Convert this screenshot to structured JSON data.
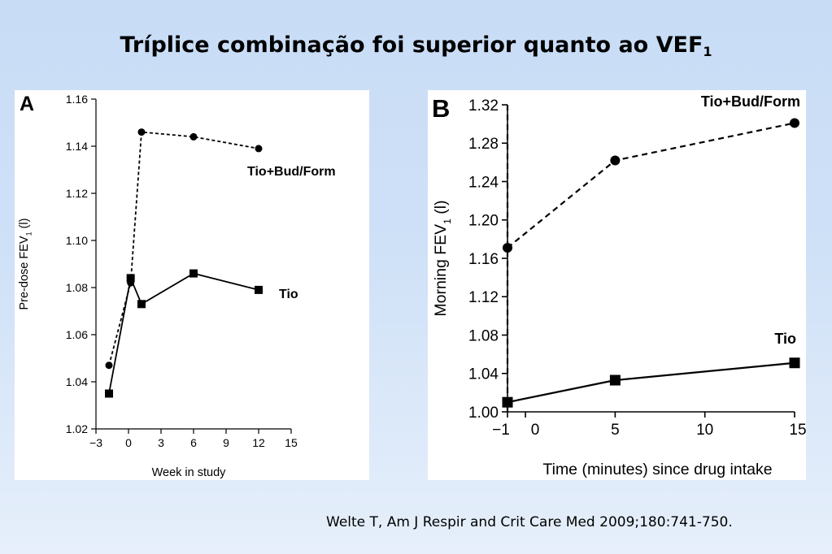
{
  "slide": {
    "title": "Tríplice combinação foi superior quanto ao VEF",
    "title_sub": "1",
    "citation": "Welte T, Am J Respir and Crit Care Med 2009;180:741-750."
  },
  "chart_data": [
    {
      "type": "line",
      "panel_label": "A",
      "xlabel": "Week in study",
      "ylabel": "Pre-dose FEV",
      "ylabel_sub": "1",
      "ylabel_unit": " (l)",
      "xlim": [
        -3,
        15
      ],
      "ylim": [
        1.02,
        1.16
      ],
      "xticks": [
        -3,
        0,
        3,
        6,
        9,
        12,
        15
      ],
      "xtick_labels": [
        "−3",
        "0",
        "3",
        "6",
        "9",
        "12",
        "15"
      ],
      "yticks": [
        1.02,
        1.04,
        1.06,
        1.08,
        1.1,
        1.12,
        1.14,
        1.16
      ],
      "ytick_labels": [
        "1.02",
        "1.04",
        "1.06",
        "1.08",
        "1.10",
        "1.12",
        "1.14",
        "1.16"
      ],
      "series": [
        {
          "name": "Tio+Bud/Form",
          "style": "dashed",
          "marker": "circle",
          "x": [
            -1.8,
            0.2,
            1.2,
            6.0,
            12.0
          ],
          "y": [
            1.047,
            1.082,
            1.146,
            1.144,
            1.139
          ]
        },
        {
          "name": "Tio",
          "style": "solid",
          "marker": "square",
          "x": [
            -1.8,
            0.2,
            1.2,
            6.0,
            12.0
          ],
          "y": [
            1.035,
            1.084,
            1.073,
            1.086,
            1.079
          ]
        }
      ]
    },
    {
      "type": "line",
      "panel_label": "B",
      "xlabel": "Time (minutes) since drug intake",
      "ylabel": "Morning FEV",
      "ylabel_sub": "1",
      "ylabel_unit": " (l)",
      "xlim": [
        -1,
        15
      ],
      "ylim": [
        1.0,
        1.32
      ],
      "xticks": [
        -1,
        0,
        5,
        10,
        15
      ],
      "xtick_labels": [
        "−1",
        "0",
        "5",
        "10",
        "15"
      ],
      "yticks": [
        1.0,
        1.04,
        1.08,
        1.12,
        1.16,
        1.2,
        1.24,
        1.28,
        1.32
      ],
      "ytick_labels": [
        "1.00",
        "1.04",
        "1.08",
        "1.12",
        "1.16",
        "1.20",
        "1.24",
        "1.28",
        "1.32"
      ],
      "vline_x": -1,
      "series": [
        {
          "name": "Tio+Bud/Form",
          "style": "dashed",
          "marker": "circle",
          "x": [
            -1,
            5,
            15
          ],
          "y": [
            1.171,
            1.262,
            1.301
          ]
        },
        {
          "name": "Tio",
          "style": "solid",
          "marker": "square",
          "x": [
            -1,
            5,
            15
          ],
          "y": [
            1.01,
            1.033,
            1.051
          ]
        }
      ]
    }
  ]
}
